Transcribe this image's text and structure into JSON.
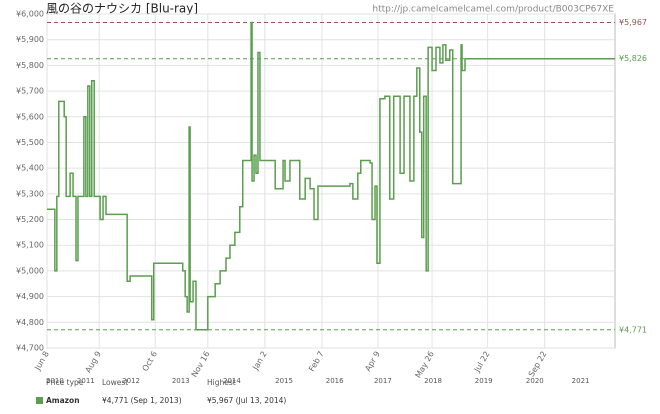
{
  "chart_data": {
    "type": "line",
    "step": true,
    "title": "風の谷のナウシカ [Blu-ray]",
    "url": "http://jp.camelcamelcamel.com/product/B003CP67XE",
    "xlim": [
      2010.4,
      2021.95
    ],
    "xticks": [
      {
        "value": 2010.4,
        "label": "Jun 8"
      },
      {
        "value": 2011.46,
        "label": "Aug 9"
      },
      {
        "value": 2012.6,
        "label": "Oct 6"
      },
      {
        "value": 2013.67,
        "label": "Nov 16"
      },
      {
        "value": 2014.83,
        "label": "Jan 2"
      },
      {
        "value": 2015.99,
        "label": "Feb 7"
      },
      {
        "value": 2017.13,
        "label": "Apr 9"
      },
      {
        "value": 2018.23,
        "label": "May 26"
      },
      {
        "value": 2019.36,
        "label": "Jul 22"
      },
      {
        "value": 2020.52,
        "label": "Sep 22"
      }
    ],
    "year_ticks": [
      {
        "value": 2010.56,
        "label": "2010"
      },
      {
        "value": 2011.19,
        "label": "2011"
      },
      {
        "value": 2012.11,
        "label": "2012"
      },
      {
        "value": 2013.12,
        "label": "2013"
      },
      {
        "value": 2014.16,
        "label": "2014"
      },
      {
        "value": 2015.22,
        "label": "2015"
      },
      {
        "value": 2016.25,
        "label": "2016"
      },
      {
        "value": 2017.23,
        "label": "2017"
      },
      {
        "value": 2018.25,
        "label": "2018"
      },
      {
        "value": 2019.28,
        "label": "2019"
      },
      {
        "value": 2020.32,
        "label": "2020"
      },
      {
        "value": 2021.25,
        "label": "2021"
      }
    ],
    "ylim": [
      4700,
      6000
    ],
    "yticks": [
      {
        "value": 4700,
        "label": "¥4,700"
      },
      {
        "value": 4800,
        "label": "¥4,800"
      },
      {
        "value": 4900,
        "label": "¥4,900"
      },
      {
        "value": 5000,
        "label": "¥5,000"
      },
      {
        "value": 5100,
        "label": "¥5,100"
      },
      {
        "value": 5200,
        "label": "¥5,200"
      },
      {
        "value": 5300,
        "label": "¥5,300"
      },
      {
        "value": 5400,
        "label": "¥5,400"
      },
      {
        "value": 5500,
        "label": "¥5,500"
      },
      {
        "value": 5600,
        "label": "¥5,600"
      },
      {
        "value": 5700,
        "label": "¥5,700"
      },
      {
        "value": 5800,
        "label": "¥5,800"
      },
      {
        "value": 5900,
        "label": "¥5,900"
      },
      {
        "value": 6000,
        "label": "¥6,000"
      }
    ],
    "grid": true,
    "reference_lines": [
      {
        "value": 5967,
        "label": "¥5,967",
        "color": "#a05050"
      },
      {
        "value": 5826,
        "label": "¥5,826",
        "color": "#5a9e4e"
      },
      {
        "value": 4771,
        "label": "¥4,771",
        "color": "#5a9e4e"
      }
    ],
    "series": [
      {
        "name": "Amazon",
        "color": "#5a9e4e",
        "x": [
          2010.4,
          2010.5,
          2010.56,
          2010.6,
          2010.64,
          2010.75,
          2010.79,
          2010.87,
          2010.93,
          2010.99,
          2011.03,
          2011.15,
          2011.19,
          2011.23,
          2011.27,
          2011.31,
          2011.36,
          2011.48,
          2011.54,
          2011.6,
          2011.68,
          2011.88,
          2012.01,
          2012.03,
          2012.09,
          2012.29,
          2012.49,
          2012.53,
          2012.57,
          2012.7,
          2013.0,
          2013.16,
          2013.21,
          2013.25,
          2013.29,
          2013.31,
          2013.37,
          2013.43,
          2013.61,
          2013.67,
          2013.82,
          2013.92,
          2014.04,
          2014.12,
          2014.22,
          2014.32,
          2014.38,
          2014.53,
          2014.55,
          2014.57,
          2014.61,
          2014.65,
          2014.69,
          2014.73,
          2014.93,
          2015.04,
          2015.2,
          2015.24,
          2015.34,
          2015.54,
          2015.65,
          2015.75,
          2015.83,
          2015.91,
          2016.36,
          2016.46,
          2016.56,
          2016.62,
          2016.72,
          2016.78,
          2016.87,
          2016.97,
          2017.01,
          2017.07,
          2017.11,
          2017.17,
          2017.27,
          2017.37,
          2017.45,
          2017.58,
          2017.66,
          2017.78,
          2017.86,
          2017.92,
          2017.98,
          2018.02,
          2018.06,
          2018.11,
          2018.15,
          2018.23,
          2018.31,
          2018.39,
          2018.45,
          2018.51,
          2018.59,
          2018.65,
          2018.74,
          2018.78,
          2018.82,
          2018.84,
          2018.9,
          2021.95
        ],
        "values": [
          5240,
          5240,
          5000,
          5290,
          5660,
          5600,
          5290,
          5380,
          5290,
          5040,
          5290,
          5600,
          5290,
          5720,
          5290,
          5740,
          5290,
          5200,
          5290,
          5220,
          5220,
          5220,
          5220,
          4960,
          4980,
          4980,
          4980,
          4810,
          5030,
          5030,
          5030,
          5000,
          4900,
          4840,
          5560,
          4880,
          4960,
          4771,
          4771,
          4900,
          4950,
          5000,
          5050,
          5100,
          5150,
          5250,
          5430,
          5430,
          5967,
          5350,
          5450,
          5380,
          5850,
          5430,
          5430,
          5320,
          5430,
          5350,
          5430,
          5280,
          5360,
          5320,
          5200,
          5330,
          5330,
          5330,
          5340,
          5280,
          5380,
          5430,
          5430,
          5420,
          5200,
          5330,
          5030,
          5670,
          5680,
          5280,
          5680,
          5380,
          5680,
          5350,
          5680,
          5790,
          5540,
          5130,
          5680,
          5000,
          5870,
          5780,
          5870,
          5810,
          5880,
          5820,
          5860,
          5340,
          5340,
          5340,
          5880,
          5780,
          5826,
          5826
        ]
      }
    ],
    "legend_table": {
      "headers": [
        "Price type",
        "Lowest",
        "Highest"
      ],
      "lowest": "¥4,771 (Sep 1, 2013)",
      "highest": "¥5,967 (Jul 13, 2014)"
    }
  }
}
